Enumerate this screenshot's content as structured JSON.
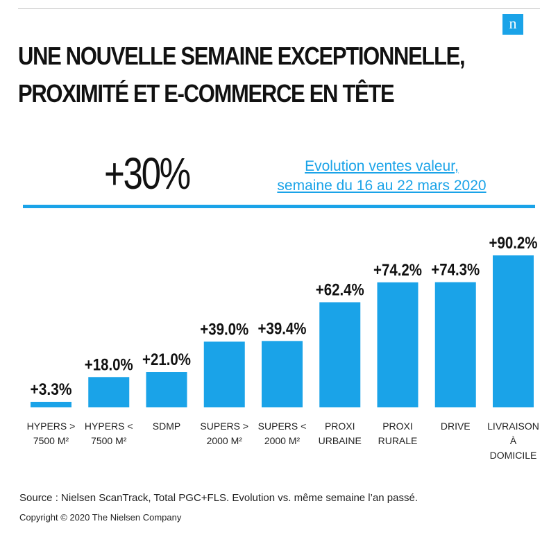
{
  "brand": {
    "logo_letter": "n",
    "logo_color": "#1aa3e8"
  },
  "title_line1": "UNE NOUVELLE SEMAINE EXCEPTIONNELLE,",
  "title_line2": "PROXIMITÉ ET E-COMMERCE EN TÊTE",
  "headline": {
    "value": "+30%",
    "caption_line1": "Evolution ventes valeur,",
    "caption_line2": "semaine du 16 au 22 mars 2020"
  },
  "chart_data": {
    "type": "bar",
    "categories": [
      [
        "HYPERS >",
        "7500 M²"
      ],
      [
        "HYPERS <",
        "7500 M²"
      ],
      [
        "SDMP"
      ],
      [
        "SUPERS >",
        "2000 M²"
      ],
      [
        "SUPERS <",
        "2000 M²"
      ],
      [
        "PROXI",
        "URBAINE"
      ],
      [
        "PROXI",
        "RURALE"
      ],
      [
        "DRIVE"
      ],
      [
        "LIVRAISON",
        "À",
        "DOMICILE"
      ]
    ],
    "values": [
      3.3,
      18.0,
      21.0,
      39.0,
      39.4,
      62.4,
      74.2,
      74.3,
      90.2
    ],
    "value_labels": [
      "+3.3%",
      "+18.0%",
      "+21.0%",
      "+39.0%",
      "+39.4%",
      "+62.4%",
      "+74.2%",
      "+74.3%",
      "+90.2%"
    ],
    "ylim": [
      0,
      90.2
    ],
    "bar_color": "#1aa3e8",
    "grid": false
  },
  "footer": {
    "source": "Source : Nielsen ScanTrack, Total PGC+FLS. Evolution vs. même semaine l’an passé.",
    "copyright": "Copyright © 2020 The Nielsen Company"
  }
}
